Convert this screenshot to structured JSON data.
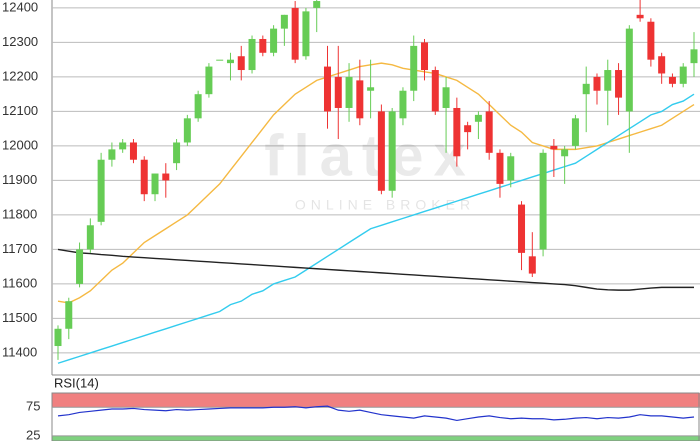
{
  "chart_data": [
    {
      "type": "candlestick",
      "open": [
        11420,
        11470,
        11600,
        11700,
        11780,
        11960,
        11990,
        12010,
        11960,
        11860,
        11920,
        11950,
        12010,
        12080,
        12150,
        12250,
        12240,
        12260,
        12220,
        12310,
        12270,
        12340,
        12400,
        12260,
        12400,
        12230,
        12200,
        12110,
        12190,
        12160,
        12100,
        11870,
        12080,
        12160,
        12300,
        12220,
        12110,
        12110,
        12060,
        12070,
        12100,
        11980,
        11900,
        11830,
        11680,
        11700,
        12000,
        11970,
        12000,
        12150,
        12200,
        12160,
        12220,
        12100,
        12380,
        12360,
        12260,
        12200,
        12180,
        12240
      ],
      "high": [
        11480,
        11560,
        11720,
        11790,
        11980,
        12010,
        12020,
        12020,
        11970,
        11920,
        11950,
        12020,
        12090,
        12160,
        12240,
        12250,
        12270,
        12290,
        12320,
        12320,
        12350,
        12380,
        12420,
        12400,
        12440,
        12290,
        12290,
        12240,
        12250,
        12250,
        12120,
        12110,
        12170,
        12320,
        12310,
        12230,
        12200,
        12140,
        12070,
        12100,
        12130,
        11990,
        11980,
        11840,
        11750,
        11990,
        12020,
        12000,
        12090,
        12230,
        12210,
        12250,
        12240,
        12350,
        12430,
        12370,
        12270,
        12210,
        12240,
        12330
      ],
      "low": [
        11380,
        11440,
        11590,
        11690,
        11770,
        11940,
        11980,
        11950,
        11840,
        11840,
        11850,
        11930,
        12000,
        12070,
        12140,
        12250,
        12190,
        12190,
        12210,
        12260,
        12260,
        12290,
        12240,
        12250,
        12330,
        12050,
        12020,
        12070,
        12060,
        12080,
        11860,
        11850,
        12060,
        12130,
        12190,
        12090,
        11980,
        11940,
        11990,
        12020,
        11960,
        11850,
        11880,
        11640,
        11620,
        11680,
        11910,
        11890,
        11990,
        12040,
        12120,
        12060,
        12090,
        11980,
        12360,
        12230,
        12180,
        12170,
        12170,
        12200
      ],
      "close": [
        11470,
        11550,
        11700,
        11770,
        11960,
        11990,
        12010,
        11960,
        11860,
        11920,
        11900,
        12010,
        12080,
        12150,
        12230,
        12250,
        12250,
        12220,
        12310,
        12270,
        12340,
        12380,
        12250,
        12390,
        12420,
        12100,
        12110,
        12200,
        12080,
        12170,
        11870,
        12100,
        12160,
        12290,
        12220,
        12100,
        12170,
        11970,
        12040,
        12090,
        11980,
        11890,
        11970,
        11690,
        11630,
        11980,
        11990,
        11990,
        12080,
        12180,
        12160,
        12220,
        12140,
        12340,
        12370,
        12250,
        12210,
        12180,
        12230,
        12280
      ],
      "up_color": "#66cc55",
      "down_color": "#ee3333",
      "lines": [
        {
          "color": "#f5b942",
          "values": [
            11550,
            11545,
            11560,
            11580,
            11610,
            11640,
            11660,
            11690,
            11720,
            11740,
            11760,
            11780,
            11800,
            11830,
            11860,
            11890,
            11930,
            11970,
            12010,
            12050,
            12090,
            12120,
            12150,
            12170,
            12190,
            12200,
            12210,
            12220,
            12230,
            12235,
            12240,
            12235,
            12225,
            12220,
            12215,
            12210,
            12200,
            12190,
            12170,
            12150,
            12120,
            12090,
            12060,
            12040,
            12010,
            12000,
            11990,
            11990,
            11990,
            11995,
            12000,
            12010,
            12020,
            12030,
            12040,
            12050,
            12060,
            12080,
            12100,
            12120
          ]
        },
        {
          "color": "#33ccee",
          "values": [
            11370,
            11380,
            11390,
            11400,
            11410,
            11420,
            11430,
            11440,
            11450,
            11460,
            11470,
            11480,
            11490,
            11500,
            11510,
            11520,
            11540,
            11550,
            11570,
            11580,
            11600,
            11610,
            11620,
            11640,
            11660,
            11680,
            11700,
            11720,
            11740,
            11760,
            11770,
            11780,
            11790,
            11800,
            11810,
            11820,
            11830,
            11840,
            11850,
            11860,
            11870,
            11880,
            11890,
            11900,
            11910,
            11920,
            11930,
            11940,
            11950,
            11970,
            11990,
            12010,
            12030,
            12050,
            12070,
            12090,
            12100,
            12120,
            12130,
            12150
          ]
        },
        {
          "color": "#222222",
          "values": [
            11700,
            11695,
            11690,
            11688,
            11685,
            11683,
            11680,
            11678,
            11676,
            11674,
            11672,
            11670,
            11668,
            11666,
            11664,
            11662,
            11660,
            11658,
            11656,
            11654,
            11652,
            11650,
            11648,
            11646,
            11644,
            11642,
            11640,
            11638,
            11636,
            11634,
            11632,
            11630,
            11628,
            11626,
            11624,
            11622,
            11620,
            11618,
            11616,
            11614,
            11612,
            11610,
            11608,
            11606,
            11604,
            11602,
            11600,
            11598,
            11595,
            11590,
            11585,
            11583,
            11582,
            11582,
            11585,
            11588,
            11590,
            11590,
            11590,
            11590
          ]
        }
      ],
      "ylim": [
        11336,
        12423
      ],
      "yticks": [
        11400,
        11500,
        11600,
        11700,
        11800,
        11900,
        12000,
        12100,
        12200,
        12300,
        12400
      ],
      "grid": true,
      "watermark": {
        "logo": "flatex",
        "tagline": "ONLINE BROKER"
      }
    },
    {
      "type": "line",
      "title": "RSI(14)",
      "color": "#2233cc",
      "values": [
        60,
        62,
        66,
        68,
        70,
        72,
        72,
        73,
        71,
        70,
        69,
        71,
        70,
        71,
        72,
        73,
        74,
        74,
        74,
        74,
        75,
        75,
        76,
        74,
        76,
        77,
        70,
        68,
        70,
        66,
        62,
        60,
        58,
        56,
        60,
        58,
        56,
        52,
        55,
        58,
        60,
        57,
        55,
        56,
        55,
        55,
        53,
        54,
        56,
        57,
        55,
        57,
        56,
        58,
        62,
        60,
        60,
        58,
        56,
        58
      ],
      "ylim": [
        16,
        100
      ],
      "yticks": [
        25,
        75
      ],
      "grid": true,
      "band_colors": [
        "#f08080",
        "#7fd17f"
      ]
    }
  ]
}
